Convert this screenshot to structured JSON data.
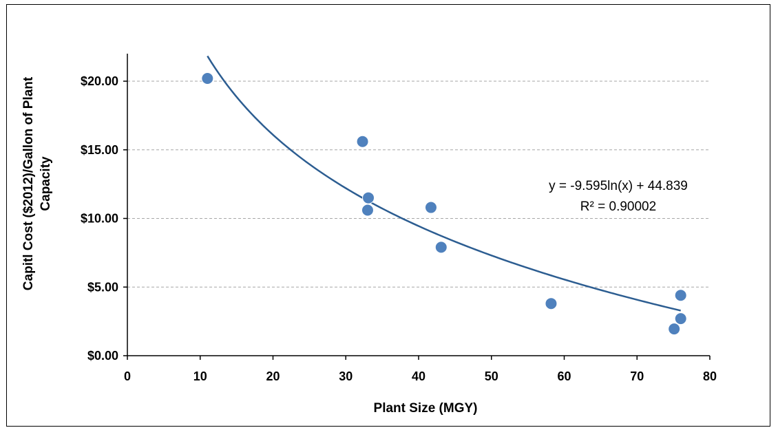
{
  "chart_data": {
    "type": "scatter",
    "title": "",
    "xlabel": "Plant Size (MGY)",
    "ylabel_lines": [
      "Capitl Cost ($2012)/Gallon of Plant",
      "Capacity"
    ],
    "xlim": [
      0,
      80
    ],
    "ylim": [
      0,
      20
    ],
    "x_ticks": [
      0,
      10,
      20,
      30,
      40,
      50,
      60,
      70,
      80
    ],
    "x_tick_labels": [
      "0",
      "10",
      "20",
      "30",
      "40",
      "50",
      "60",
      "70",
      "80"
    ],
    "y_ticks": [
      0,
      5,
      10,
      15,
      20
    ],
    "y_tick_labels": [
      "$0.00",
      "$5.00",
      "$10.00",
      "$15.00",
      "$20.00"
    ],
    "grid": "horizontal dashed",
    "legend": "none",
    "series": [
      {
        "points": [
          {
            "x": 11,
            "y": 20.2
          },
          {
            "x": 32.3,
            "y": 15.6
          },
          {
            "x": 33.1,
            "y": 11.5
          },
          {
            "x": 33.0,
            "y": 10.6
          },
          {
            "x": 41.7,
            "y": 10.8
          },
          {
            "x": 43.1,
            "y": 7.9
          },
          {
            "x": 58.2,
            "y": 3.8
          },
          {
            "x": 76.0,
            "y": 4.4
          },
          {
            "x": 76.0,
            "y": 2.7
          },
          {
            "x": 75.1,
            "y": 1.95
          }
        ],
        "color": "#4f81bd"
      }
    ],
    "trendline": {
      "type": "logarithmic",
      "a": -9.595,
      "b": 44.839,
      "x_range": [
        11,
        76
      ],
      "color": "#2c5d91",
      "equation_label": "y = -9.595ln(x) + 44.839",
      "r2_label": "R² = 0.90002"
    }
  }
}
